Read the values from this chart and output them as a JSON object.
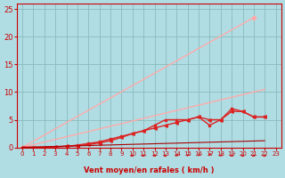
{
  "background_color": "#b0dde4",
  "grid_color": "#88bbbb",
  "xlabel": "Vent moyen/en rafales ( km/h )",
  "xlabel_color": "#cc0000",
  "tick_color": "#cc0000",
  "xlim": [
    -0.5,
    23.5
  ],
  "ylim": [
    0,
    26
  ],
  "yticks": [
    0,
    5,
    10,
    15,
    20,
    25
  ],
  "xticks": [
    0,
    1,
    2,
    3,
    4,
    5,
    6,
    7,
    8,
    9,
    10,
    11,
    12,
    13,
    14,
    15,
    16,
    17,
    18,
    19,
    20,
    21,
    22,
    23
  ],
  "series": [
    {
      "x": [
        0,
        21
      ],
      "y": [
        0,
        23.5
      ],
      "color": "#ffaaaa",
      "lw": 1.0,
      "marker": "D",
      "markersize": 2.5,
      "markevery": null
    },
    {
      "x": [
        0,
        22
      ],
      "y": [
        0,
        10.5
      ],
      "color": "#ffaaaa",
      "lw": 1.0,
      "marker": null,
      "markersize": 0
    },
    {
      "x": [
        0,
        1,
        2,
        3,
        4,
        5,
        6,
        7,
        8,
        9,
        10,
        11,
        12,
        13,
        14,
        15,
        16,
        17,
        18,
        19,
        20,
        21,
        22
      ],
      "y": [
        0,
        0,
        0,
        0.1,
        0.2,
        0.3,
        0.5,
        0.8,
        1.2,
        1.8,
        2.5,
        3.0,
        3.5,
        4.0,
        4.5,
        5.0,
        5.5,
        5.0,
        5.0,
        6.5,
        6.5,
        5.5,
        5.5
      ],
      "color": "#dd2222",
      "lw": 1.0,
      "marker": "<",
      "markersize": 2.5
    },
    {
      "x": [
        0,
        1,
        2,
        3,
        4,
        5,
        6,
        7,
        8,
        9,
        10,
        11,
        12,
        13,
        14,
        15,
        16,
        17,
        18,
        19,
        20,
        21,
        22
      ],
      "y": [
        0,
        0,
        0,
        0.1,
        0.2,
        0.4,
        0.7,
        1.0,
        1.5,
        2.0,
        2.5,
        3.0,
        4.0,
        5.0,
        5.0,
        5.0,
        5.5,
        4.0,
        5.0,
        7.0,
        6.5,
        5.5,
        5.5
      ],
      "color": "#dd2222",
      "lw": 1.0,
      "marker": "s",
      "markersize": 2.0
    },
    {
      "x": [
        0,
        22
      ],
      "y": [
        0,
        1.2
      ],
      "color": "#aa0000",
      "lw": 0.8,
      "marker": null,
      "markersize": 0
    }
  ],
  "wind_arrows": {
    "x": [
      10,
      11,
      12,
      13,
      14,
      15,
      16,
      17,
      18,
      19,
      20,
      21,
      22
    ],
    "angles": [
      225,
      220,
      215,
      225,
      200,
      195,
      190,
      185,
      200,
      210,
      215,
      220,
      225
    ],
    "color": "#cc2222",
    "size": 4
  }
}
